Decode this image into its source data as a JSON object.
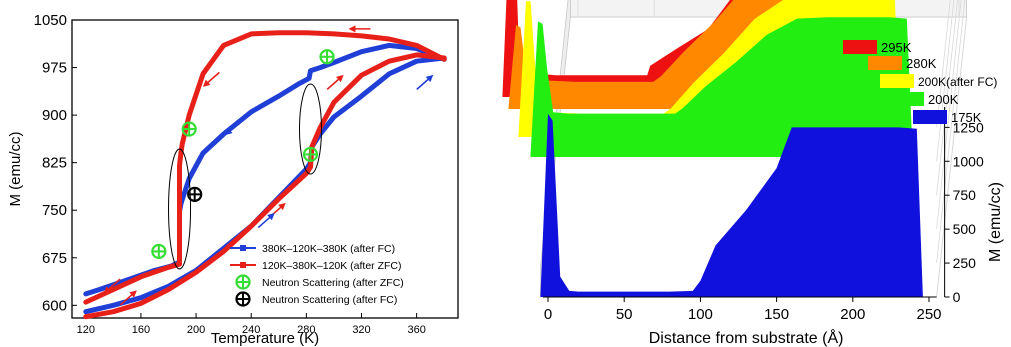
{
  "chart_data": [
    {
      "type": "line",
      "xlabel": "Temperature (K)",
      "ylabel": "M (emu/cc)",
      "xlim": [
        110,
        390
      ],
      "ylim": [
        580,
        1050
      ],
      "xticks": [
        120,
        160,
        200,
        240,
        280,
        320,
        360
      ],
      "yticks": [
        600,
        675,
        750,
        825,
        900,
        975,
        1050
      ],
      "grid": false,
      "legend_position": "bottom-right",
      "legend": [
        {
          "label": "380K–120K–380K (after FC)",
          "color": "#1f3fd6",
          "marker": "square"
        },
        {
          "label": "120K–380K–120K (after ZFC)",
          "color": "#e8201a",
          "marker": "square"
        },
        {
          "label": "Neutron Scattering (after ZFC)",
          "color": "#33dd33",
          "marker": "crosshair-circle"
        },
        {
          "label": "Neutron Scattering (after FC)",
          "color": "#000000",
          "marker": "crosshair-circle"
        }
      ],
      "series": [
        {
          "name": "380K–120K–380K (after FC)",
          "color": "#1f3fd6",
          "branches": [
            {
              "direction": "cooling",
              "points": [
                [
                  380,
                  988
                ],
                [
                  360,
                  1005
                ],
                [
                  340,
                  1010
                ],
                [
                  320,
                  1000
                ],
                [
                  300,
                  983
                ],
                [
                  290,
                  975
                ],
                [
                  283,
                  970
                ],
                [
                  282,
                  958
                ],
                [
                  275,
                  950
                ],
                [
                  260,
                  930
                ],
                [
                  240,
                  905
                ],
                [
                  220,
                  870
                ],
                [
                  205,
                  840
                ],
                [
                  195,
                  800
                ],
                [
                  190,
                  767
                ],
                [
                  189,
                  760
                ],
                [
                  188,
                  748
                ],
                [
                  188,
                  735
                ],
                [
                  188,
                  715
                ],
                [
                  188,
                  690
                ],
                [
                  188,
                  668
                ],
                [
                  182,
                  662
                ],
                [
                  170,
                  655
                ],
                [
                  150,
                  640
                ],
                [
                  130,
                  625
                ],
                [
                  120,
                  618
                ]
              ]
            },
            {
              "direction": "warming",
              "points": [
                [
                  120,
                  590
                ],
                [
                  140,
                  600
                ],
                [
                  160,
                  612
                ],
                [
                  180,
                  630
                ],
                [
                  200,
                  655
                ],
                [
                  220,
                  690
                ],
                [
                  240,
                  725
                ],
                [
                  260,
                  770
                ],
                [
                  280,
                  815
                ],
                [
                  283,
                  825
                ],
                [
                  284,
                  850
                ],
                [
                  290,
                  870
                ],
                [
                  300,
                  897
                ],
                [
                  320,
                  930
                ],
                [
                  340,
                  965
                ],
                [
                  360,
                  985
                ],
                [
                  380,
                  990
                ]
              ]
            }
          ]
        },
        {
          "name": "120K–380K–120K (after ZFC)",
          "color": "#e8201a",
          "branches": [
            {
              "direction": "warming",
              "points": [
                [
                  120,
                  582
                ],
                [
                  140,
                  590
                ],
                [
                  160,
                  603
                ],
                [
                  180,
                  625
                ],
                [
                  200,
                  652
                ],
                [
                  220,
                  685
                ],
                [
                  240,
                  725
                ],
                [
                  260,
                  768
                ],
                [
                  280,
                  808
                ],
                [
                  283,
                  818
                ],
                [
                  284,
                  850
                ],
                [
                  290,
                  880
                ],
                [
                  300,
                  920
                ],
                [
                  320,
                  963
                ],
                [
                  340,
                  985
                ],
                [
                  360,
                  995
                ],
                [
                  380,
                  990
                ]
              ]
            },
            {
              "direction": "cooling",
              "points": [
                [
                  380,
                  988
                ],
                [
                  360,
                  1010
                ],
                [
                  340,
                  1020
                ],
                [
                  320,
                  1025
                ],
                [
                  300,
                  1028
                ],
                [
                  280,
                  1030
                ],
                [
                  260,
                  1030
                ],
                [
                  240,
                  1028
                ],
                [
                  220,
                  1010
                ],
                [
                  205,
                  965
                ],
                [
                  195,
                  900
                ],
                [
                  190,
                  855
                ],
                [
                  189,
                  840
                ],
                [
                  188,
                  820
                ],
                [
                  188,
                  780
                ],
                [
                  188,
                  750
                ],
                [
                  188,
                  720
                ],
                [
                  188,
                  690
                ],
                [
                  188,
                  665
                ],
                [
                  180,
                  660
                ],
                [
                  160,
                  645
                ],
                [
                  140,
                  625
                ],
                [
                  120,
                  605
                ]
              ]
            }
          ]
        }
      ],
      "neutron_scattering_zfc": [
        [
          173,
          685
        ],
        [
          195,
          878
        ],
        [
          283,
          838
        ],
        [
          295,
          992
        ]
      ],
      "neutron_scattering_fc": [
        [
          199,
          775
        ]
      ],
      "arrows": [
        {
          "color": "#e8201a",
          "at": [
            320,
            1036
          ],
          "direction": "left"
        },
        {
          "color": "#e8201a",
          "at": [
            212,
            958
          ],
          "direction": "down-left"
        },
        {
          "color": "#e8201a",
          "at": [
            300,
            950
          ],
          "direction": "up-right"
        },
        {
          "color": "#e8201a",
          "at": [
            258,
            748
          ],
          "direction": "up-right"
        },
        {
          "color": "#e8201a",
          "at": [
            150,
            610
          ],
          "direction": "up-right"
        },
        {
          "color": "#e8201a",
          "at": [
            140,
            632
          ],
          "direction": "down-left"
        },
        {
          "color": "#1f3fd6",
          "at": [
            250,
            732
          ],
          "direction": "up-right"
        },
        {
          "color": "#1f3fd6",
          "at": [
            228,
            882
          ],
          "direction": "down-left"
        },
        {
          "color": "#1f3fd6",
          "at": [
            365,
            950
          ],
          "direction": "up-right"
        }
      ]
    },
    {
      "type": "area",
      "view": "3d-waterfall",
      "xlabel": "Distance from substrate (Å)",
      "zlabel": "M (emu/cc)",
      "xlim": [
        -5,
        255
      ],
      "zlim": [
        0,
        1400
      ],
      "xticks": [
        0,
        50,
        100,
        150,
        200,
        250
      ],
      "zticks": [
        0,
        250,
        500,
        750,
        1000,
        1250
      ],
      "grid": true,
      "legend_position": "top-right",
      "series": [
        {
          "name": "295K",
          "color": "#ee1111",
          "x": [
            -5,
            0,
            3,
            6,
            10,
            20,
            30,
            40,
            60,
            80,
            90,
            92,
            110,
            130,
            150,
            170,
            190,
            210,
            230,
            242,
            246,
            255
          ],
          "values": [
            0,
            1350,
            1300,
            300,
            180,
            170,
            160,
            160,
            160,
            160,
            160,
            230,
            360,
            500,
            800,
            960,
            970,
            970,
            970,
            960,
            0,
            0
          ]
        },
        {
          "name": "280K",
          "color": "#ff8800",
          "x": [
            -5,
            0,
            3,
            6,
            10,
            20,
            40,
            60,
            80,
            90,
            95,
            110,
            130,
            150,
            170,
            190,
            210,
            230,
            242,
            246,
            255
          ],
          "values": [
            0,
            620,
            600,
            320,
            220,
            210,
            200,
            200,
            200,
            200,
            240,
            420,
            640,
            900,
            1070,
            1080,
            1080,
            1080,
            1070,
            0,
            0
          ]
        },
        {
          "name": "200K(after FC)",
          "color": "#ffff00",
          "x": [
            -5,
            0,
            3,
            6,
            10,
            20,
            40,
            60,
            80,
            90,
            95,
            110,
            130,
            150,
            170,
            190,
            210,
            230,
            242,
            246,
            255
          ],
          "values": [
            0,
            1000,
            1000,
            520,
            190,
            180,
            170,
            170,
            170,
            170,
            210,
            400,
            620,
            870,
            1020,
            1030,
            1030,
            1030,
            1020,
            0,
            0
          ]
        },
        {
          "name": "200K",
          "color": "#22ee11",
          "x": [
            -5,
            0,
            3,
            6,
            10,
            20,
            40,
            60,
            80,
            90,
            95,
            110,
            130,
            150,
            170,
            190,
            210,
            230,
            242,
            246,
            255
          ],
          "values": [
            0,
            1000,
            980,
            650,
            330,
            320,
            320,
            320,
            320,
            320,
            360,
            520,
            700,
            900,
            1020,
            1030,
            1030,
            1030,
            1020,
            0,
            0
          ]
        },
        {
          "name": "175K",
          "color": "#1111dd",
          "x": [
            -5,
            0,
            3,
            8,
            14,
            20,
            40,
            60,
            80,
            95,
            100,
            110,
            130,
            150,
            160,
            170,
            190,
            210,
            230,
            242,
            246,
            255
          ],
          "values": [
            0,
            1350,
            1300,
            150,
            45,
            40,
            40,
            40,
            40,
            45,
            120,
            380,
            640,
            950,
            1250,
            1250,
            1250,
            1250,
            1250,
            1240,
            0,
            0
          ]
        }
      ]
    }
  ]
}
